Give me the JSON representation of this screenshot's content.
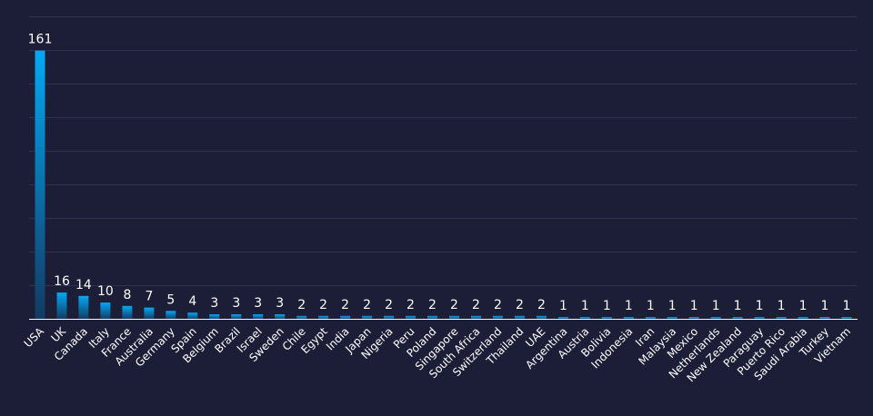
{
  "colors": {
    "background": "#1c1d36",
    "gridline": "#2f3150",
    "axis": "#ffffff",
    "bar_top": "#03a9f4",
    "bar_bottom": "#123a63",
    "text": "#ffffff"
  },
  "chart_data": {
    "type": "bar",
    "title": "",
    "xlabel": "",
    "ylabel": "",
    "ylim": [
      0,
      180
    ],
    "grid": true,
    "y_tick_labels_shown": false,
    "data_labels": true,
    "categories": [
      "USA",
      "UK",
      "Canada",
      "Italy",
      "France",
      "Australia",
      "Germany",
      "Spain",
      "Belgium",
      "Brazil",
      "Israel",
      "Sweden",
      "Chile",
      "Egypt",
      "India",
      "Japan",
      "Nigeria",
      "Peru",
      "Poland",
      "Singapore",
      "South Africa",
      "Switzerland",
      "Thailand",
      "UAE",
      "Argentina",
      "Austria",
      "Bolivia",
      "Indonesia",
      "Iran",
      "Malaysia",
      "Mexico",
      "Netherlands",
      "New Zealand",
      "Paraguay",
      "Puerto Rico",
      "Saudi Arabia",
      "Turkey",
      "Vietnam"
    ],
    "values": [
      161,
      16,
      14,
      10,
      8,
      7,
      5,
      4,
      3,
      3,
      3,
      3,
      2,
      2,
      2,
      2,
      2,
      2,
      2,
      2,
      2,
      2,
      2,
      2,
      1,
      1,
      1,
      1,
      1,
      1,
      1,
      1,
      1,
      1,
      1,
      1,
      1,
      1
    ]
  }
}
